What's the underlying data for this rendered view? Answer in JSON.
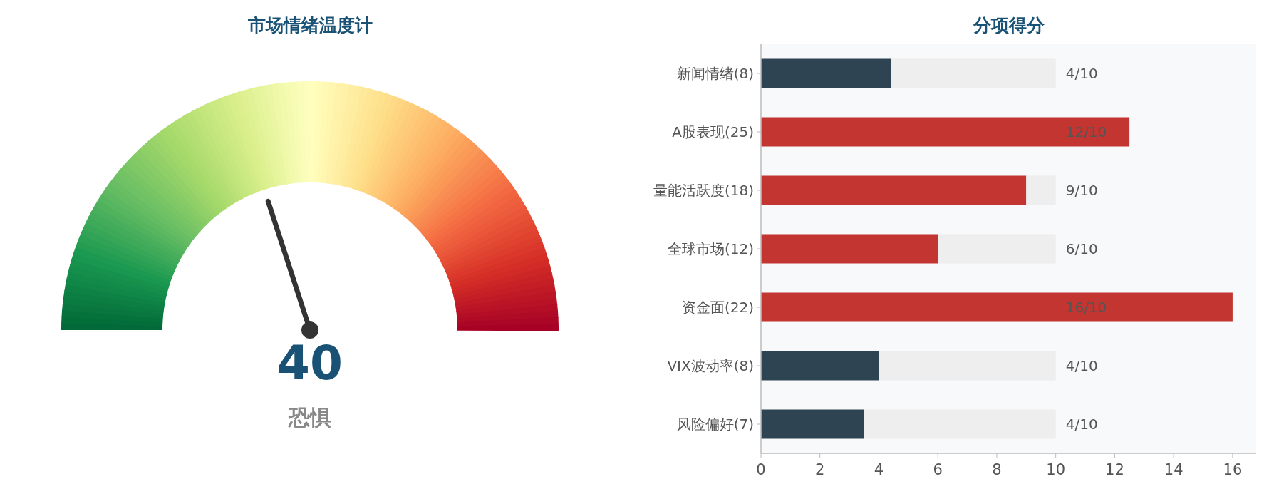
{
  "chart_data": [
    {
      "type": "other",
      "title": "市场情绪温度计",
      "values": [
        40
      ],
      "data_labels": true,
      "annotations": [
        "恐惧"
      ]
    },
    {
      "type": "bar",
      "title": "分项得分",
      "orientation": "horizontal",
      "stacked": true,
      "categories": [
        "新闻情绪(8)",
        "A股表现(25)",
        "量能活跃度(18)",
        "全球市场(12)",
        "资金面(22)",
        "VIX波动率(8)",
        "风险偏好(7)"
      ],
      "series": [
        {
          "colors": [
            "#2e4453",
            "#c23531",
            "#c23531",
            "#c23531",
            "#c23531",
            "#2e4453",
            "#2e4453"
          ],
          "values": [
            4.4,
            12.5,
            9,
            6,
            16,
            4,
            3.5
          ]
        },
        {
          "color": "#eeeeee",
          "values": [
            5.6,
            0,
            1,
            4,
            0,
            6,
            6.5
          ]
        }
      ],
      "annotations": [
        "4/10",
        "12/10",
        "9/10",
        "6/10",
        "16/10",
        "4/10",
        "4/10"
      ],
      "xlim": [
        0,
        16.8
      ],
      "xticks": [
        0,
        2,
        4,
        6,
        8,
        10,
        12,
        14,
        16
      ],
      "grid": false,
      "tick_labels": "xy"
    }
  ]
}
